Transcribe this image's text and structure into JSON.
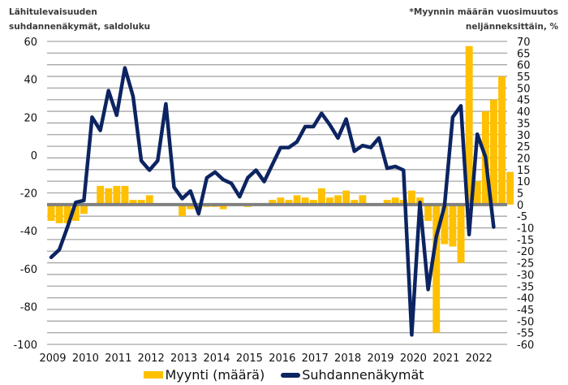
{
  "chart_data": {
    "type": "bar+line",
    "title_left": "Lähitulevaisuuden suhdannenäkymät, saldoluku",
    "title_left_lines": [
      "Lähitulevaisuuden",
      "suhdannenäkymät, saldoluku"
    ],
    "title_right_lines": [
      "*Myynnin määrän vuosimuutos",
      "neljänneksittäin, %"
    ],
    "left_axis": {
      "label": "Lähitulevaisuuden suhdannenäkymät, saldoluku",
      "range": [
        -100,
        60
      ],
      "ticks": [
        60,
        40,
        20,
        0,
        -20,
        -40,
        -60,
        -80,
        -100
      ]
    },
    "right_axis": {
      "label": "Myynnin määrän vuosimuutos neljänneksittäin, %",
      "range": [
        -60,
        70
      ],
      "ticks": [
        70,
        65,
        60,
        55,
        50,
        45,
        40,
        35,
        30,
        25,
        20,
        15,
        10,
        5,
        0,
        -5,
        -10,
        -15,
        -20,
        -25,
        -30,
        -35,
        -40,
        -45,
        -50,
        -55,
        -60
      ]
    },
    "x_tick_labels": [
      "2009",
      "2010",
      "2011",
      "2012",
      "2013",
      "2014",
      "2015",
      "2016",
      "2017",
      "2018",
      "2019",
      "2020",
      "2021",
      "2022"
    ],
    "frequency": "quarterly",
    "start": "2009 Q1",
    "grid": true,
    "legend_position": "bottom",
    "series": [
      {
        "name": "Myynti (määrä)",
        "type": "bar",
        "axis": "right",
        "color": "#ffc000",
        "values": [
          -7,
          -8,
          -8,
          -7,
          -4,
          0,
          8,
          7,
          8,
          8,
          2,
          2,
          4,
          0,
          0,
          0,
          -5,
          -2,
          -2,
          -1,
          -1,
          -2,
          0,
          0,
          -1,
          0,
          0,
          2,
          3,
          2,
          4,
          3,
          2,
          7,
          3,
          4,
          6,
          2,
          4,
          0,
          0,
          2,
          3,
          2,
          6,
          3,
          -7,
          -55,
          -17,
          -18,
          -25,
          68,
          10,
          40,
          45,
          55,
          14
        ]
      },
      {
        "name": "Suhdannenäkymät",
        "type": "line",
        "axis": "left",
        "color": "#0c2461",
        "values": [
          -54,
          -50,
          -38,
          -25,
          -24,
          20,
          13,
          34,
          21,
          46,
          31,
          -3,
          -8,
          -3,
          27,
          -17,
          -23,
          -19,
          -31,
          -12,
          -9,
          -13,
          -15,
          -22,
          -12,
          -8,
          -14,
          -5,
          4,
          4,
          7,
          15,
          15,
          22,
          16,
          9,
          19,
          2,
          5,
          4,
          9,
          -7,
          -6,
          -8,
          -95,
          -25,
          -71,
          -43,
          -27,
          20,
          26,
          -42,
          11,
          -1,
          -38
        ]
      }
    ]
  },
  "legend": {
    "bar_label": "Myynti (määrä)",
    "line_label": "Suhdannenäkymät"
  }
}
